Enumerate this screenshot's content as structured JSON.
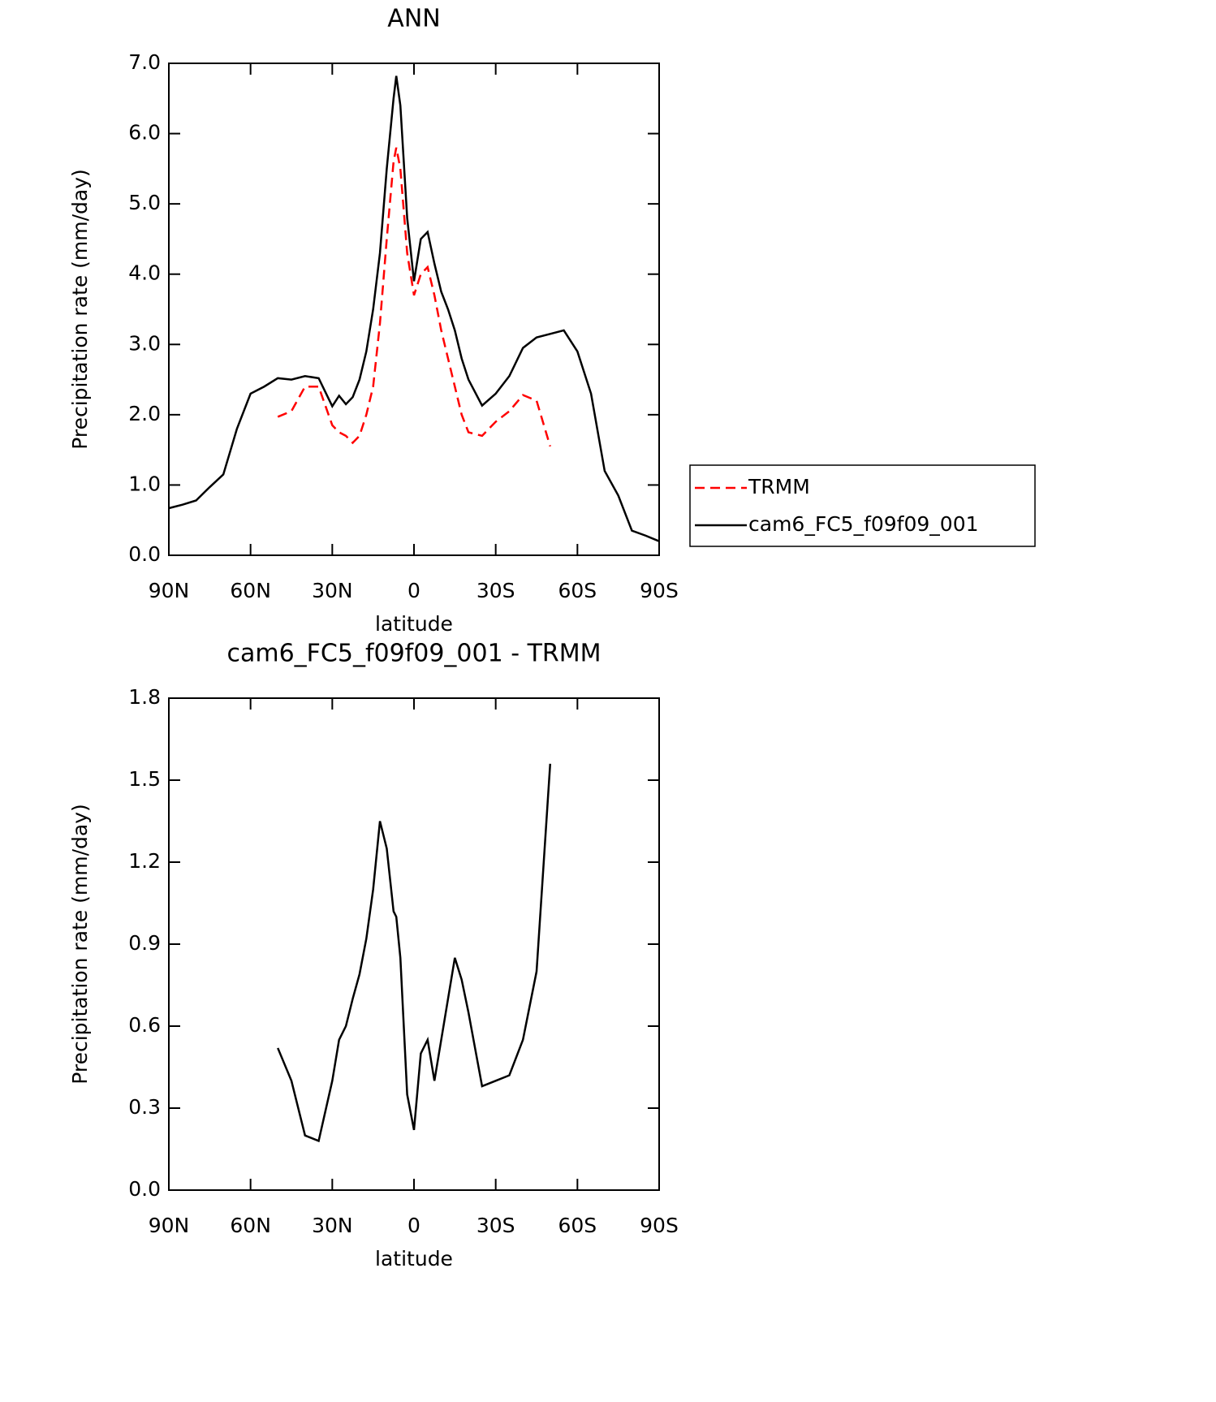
{
  "chart_data": [
    {
      "type": "line",
      "title": "ANN",
      "x_label": "latitude",
      "y_label": "Precipitation rate (mm/day)",
      "x": [
        90,
        85,
        80,
        75,
        70,
        65,
        60,
        55,
        50,
        45,
        40,
        35,
        30,
        27.5,
        25,
        22.5,
        20,
        17.5,
        15,
        12.5,
        10,
        7.5,
        6.5,
        5,
        2.5,
        0,
        -2.5,
        -5,
        -7.5,
        -10,
        -12.5,
        -15,
        -17.5,
        -20,
        -25,
        -30,
        -35,
        -40,
        -45,
        -50,
        -55,
        -60,
        -65,
        -70,
        -75,
        -80,
        -85,
        -90
      ],
      "series": [
        {
          "name": "TRMM",
          "color": "#ff0000",
          "style": "dashed",
          "values": [
            null,
            null,
            null,
            null,
            null,
            null,
            null,
            null,
            1.97,
            2.05,
            2.4,
            2.4,
            1.85,
            1.75,
            1.7,
            1.6,
            1.7,
            2.0,
            2.4,
            3.3,
            4.5,
            5.6,
            5.8,
            5.5,
            4.3,
            3.7,
            4.0,
            4.1,
            3.7,
            3.2,
            2.8,
            2.4,
            2.0,
            1.75,
            1.7,
            1.9,
            2.05,
            2.28,
            2.2,
            1.55,
            null,
            null,
            null,
            null,
            null,
            null,
            null,
            null
          ]
        },
        {
          "name": "cam6_FC5_f09f09_001",
          "color": "#000000",
          "style": "solid",
          "values": [
            0.67,
            0.72,
            0.78,
            0.97,
            1.15,
            1.8,
            2.3,
            2.4,
            2.52,
            2.5,
            2.55,
            2.52,
            2.12,
            2.27,
            2.15,
            2.25,
            2.5,
            2.9,
            3.5,
            4.3,
            5.5,
            6.5,
            6.82,
            6.4,
            4.8,
            3.9,
            4.5,
            4.6,
            4.15,
            3.75,
            3.5,
            3.2,
            2.8,
            2.5,
            2.13,
            2.3,
            2.55,
            2.95,
            3.1,
            3.15,
            3.2,
            2.9,
            2.3,
            1.2,
            0.85,
            0.35,
            0.28,
            0.2
          ]
        }
      ],
      "xlim": [
        90,
        -90
      ],
      "xticks": [
        {
          "value": 90,
          "label": "90N"
        },
        {
          "value": 60,
          "label": "60N"
        },
        {
          "value": 30,
          "label": "30N"
        },
        0,
        {
          "value": -30,
          "label": "30S"
        },
        {
          "value": -60,
          "label": "60S"
        },
        {
          "value": -90,
          "label": "90S"
        }
      ],
      "ylim": [
        0,
        7
      ],
      "yticks": [
        {
          "value": 0,
          "label": "0.0"
        },
        {
          "value": 1,
          "label": "1.0"
        },
        {
          "value": 2,
          "label": "2.0"
        },
        {
          "value": 3,
          "label": "3.0"
        },
        {
          "value": 4,
          "label": "4.0"
        },
        {
          "value": 5,
          "label": "5.0"
        },
        {
          "value": 6,
          "label": "6.0"
        },
        {
          "value": 7,
          "label": "7.0"
        }
      ],
      "legend": "right"
    },
    {
      "type": "line",
      "title": "cam6_FC5_f09f09_001 - TRMM",
      "x_label": "latitude",
      "y_label": "Precipitation rate (mm/day)",
      "x": [
        90,
        85,
        80,
        75,
        70,
        65,
        60,
        55,
        50,
        45,
        40,
        35,
        30,
        27.5,
        25,
        22.5,
        20,
        17.5,
        15,
        12.5,
        10,
        7.5,
        6.5,
        5,
        2.5,
        0,
        -2.5,
        -5,
        -7.5,
        -10,
        -12.5,
        -15,
        -17.5,
        -20,
        -25,
        -30,
        -35,
        -40,
        -45,
        -50,
        -55,
        -60,
        -65,
        -70,
        -75,
        -80,
        -85,
        -90
      ],
      "series": [
        {
          "color": "#000000",
          "style": "solid",
          "values": [
            null,
            null,
            null,
            null,
            null,
            null,
            null,
            null,
            0.52,
            0.4,
            0.2,
            0.18,
            0.4,
            0.55,
            0.6,
            0.7,
            0.79,
            0.92,
            1.1,
            1.35,
            1.25,
            1.02,
            1.0,
            0.85,
            0.35,
            0.22,
            0.5,
            0.55,
            0.4,
            0.55,
            0.7,
            0.85,
            0.77,
            0.65,
            0.38,
            0.4,
            0.42,
            0.55,
            0.8,
            1.56,
            null,
            null,
            null,
            null,
            null,
            null,
            null,
            null
          ]
        }
      ],
      "xlim": [
        90,
        -90
      ],
      "xticks": [
        {
          "value": 90,
          "label": "90N"
        },
        {
          "value": 60,
          "label": "60N"
        },
        {
          "value": 30,
          "label": "30N"
        },
        0,
        {
          "value": -30,
          "label": "30S"
        },
        {
          "value": -60,
          "label": "60S"
        },
        {
          "value": -90,
          "label": "90S"
        }
      ],
      "ylim": [
        0,
        1.8
      ],
      "yticks": [
        {
          "value": 0,
          "label": "0.0"
        },
        {
          "value": 0.3,
          "label": "0.3"
        },
        {
          "value": 0.6,
          "label": "0.6"
        },
        {
          "value": 0.9,
          "label": "0.9"
        },
        {
          "value": 1.2,
          "label": "1.2"
        },
        {
          "value": 1.5,
          "label": "1.5"
        },
        {
          "value": 1.8,
          "label": "1.8"
        }
      ]
    }
  ]
}
